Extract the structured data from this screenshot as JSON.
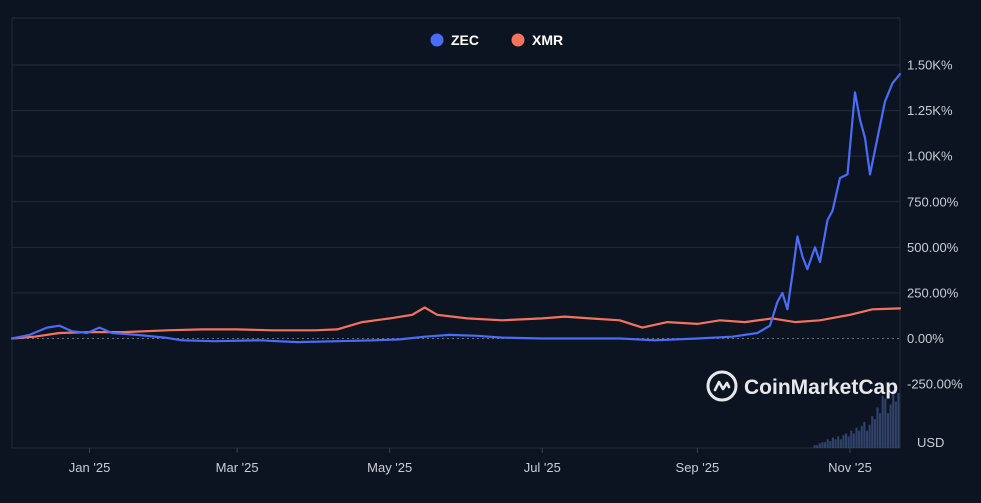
{
  "chart_data": {
    "type": "line",
    "title": "",
    "xlabel": "",
    "ylabel": "",
    "unit_label": "USD",
    "watermark": "CoinMarketCap",
    "legend_position": "top-center",
    "grid": true,
    "x_ticks": [
      "Jan '25",
      "Mar '25",
      "May '25",
      "Jul '25",
      "Sep '25",
      "Nov '25"
    ],
    "y_ticks": [
      "1.50K%",
      "1.25K%",
      "1.00K%",
      "750.00%",
      "500.00%",
      "250.00%",
      "0.00%",
      "-250.00%"
    ],
    "ylim": [
      -600,
      1750
    ],
    "x_range": [
      "2024-12-01",
      "2025-11-21"
    ],
    "series": [
      {
        "name": "ZEC",
        "color": "#4a6cf7",
        "points": [
          [
            "2024-12-01",
            0
          ],
          [
            "2024-12-08",
            20
          ],
          [
            "2024-12-15",
            60
          ],
          [
            "2024-12-20",
            70
          ],
          [
            "2024-12-25",
            40
          ],
          [
            "2024-12-31",
            30
          ],
          [
            "2025-01-05",
            60
          ],
          [
            "2025-01-10",
            30
          ],
          [
            "2025-01-20",
            20
          ],
          [
            "2025-01-31",
            5
          ],
          [
            "2025-02-07",
            -10
          ],
          [
            "2025-02-20",
            -15
          ],
          [
            "2025-03-10",
            -10
          ],
          [
            "2025-03-25",
            -20
          ],
          [
            "2025-04-10",
            -15
          ],
          [
            "2025-04-25",
            -10
          ],
          [
            "2025-05-05",
            -5
          ],
          [
            "2025-05-15",
            10
          ],
          [
            "2025-05-25",
            20
          ],
          [
            "2025-06-05",
            15
          ],
          [
            "2025-06-15",
            5
          ],
          [
            "2025-07-01",
            0
          ],
          [
            "2025-07-15",
            0
          ],
          [
            "2025-08-01",
            0
          ],
          [
            "2025-08-15",
            -10
          ],
          [
            "2025-09-01",
            0
          ],
          [
            "2025-09-15",
            10
          ],
          [
            "2025-09-25",
            30
          ],
          [
            "2025-09-30",
            70
          ],
          [
            "2025-10-03",
            200
          ],
          [
            "2025-10-05",
            250
          ],
          [
            "2025-10-07",
            160
          ],
          [
            "2025-10-09",
            350
          ],
          [
            "2025-10-11",
            560
          ],
          [
            "2025-10-13",
            450
          ],
          [
            "2025-10-15",
            380
          ],
          [
            "2025-10-18",
            500
          ],
          [
            "2025-10-20",
            420
          ],
          [
            "2025-10-23",
            650
          ],
          [
            "2025-10-25",
            700
          ],
          [
            "2025-10-28",
            880
          ],
          [
            "2025-10-31",
            900
          ],
          [
            "2025-11-03",
            1350
          ],
          [
            "2025-11-05",
            1200
          ],
          [
            "2025-11-07",
            1100
          ],
          [
            "2025-11-09",
            900
          ],
          [
            "2025-11-12",
            1100
          ],
          [
            "2025-11-15",
            1300
          ],
          [
            "2025-11-18",
            1400
          ],
          [
            "2025-11-21",
            1450
          ]
        ]
      },
      {
        "name": "XMR",
        "color": "#f4735c",
        "points": [
          [
            "2024-12-01",
            0
          ],
          [
            "2024-12-10",
            10
          ],
          [
            "2024-12-20",
            30
          ],
          [
            "2025-01-01",
            35
          ],
          [
            "2025-01-15",
            35
          ],
          [
            "2025-02-01",
            45
          ],
          [
            "2025-02-15",
            50
          ],
          [
            "2025-03-01",
            50
          ],
          [
            "2025-03-15",
            45
          ],
          [
            "2025-04-01",
            45
          ],
          [
            "2025-04-10",
            50
          ],
          [
            "2025-04-20",
            90
          ],
          [
            "2025-05-01",
            110
          ],
          [
            "2025-05-10",
            130
          ],
          [
            "2025-05-15",
            170
          ],
          [
            "2025-05-20",
            130
          ],
          [
            "2025-06-01",
            110
          ],
          [
            "2025-06-15",
            100
          ],
          [
            "2025-07-01",
            110
          ],
          [
            "2025-07-10",
            120
          ],
          [
            "2025-07-20",
            110
          ],
          [
            "2025-08-01",
            100
          ],
          [
            "2025-08-10",
            60
          ],
          [
            "2025-08-20",
            90
          ],
          [
            "2025-09-01",
            80
          ],
          [
            "2025-09-10",
            100
          ],
          [
            "2025-09-20",
            90
          ],
          [
            "2025-10-01",
            110
          ],
          [
            "2025-10-10",
            90
          ],
          [
            "2025-10-20",
            100
          ],
          [
            "2025-11-01",
            130
          ],
          [
            "2025-11-10",
            160
          ],
          [
            "2025-11-21",
            165
          ]
        ]
      }
    ],
    "volume": [
      0,
      0,
      0,
      0,
      0,
      0,
      0,
      0,
      0,
      0,
      0,
      0,
      0,
      0,
      0,
      0,
      0,
      0,
      0,
      0,
      0,
      0,
      0,
      0,
      0,
      0,
      0,
      0,
      0,
      0,
      0,
      0,
      0,
      0,
      0,
      0,
      0,
      0,
      0,
      0,
      0,
      0,
      0,
      0,
      0,
      0,
      0,
      0,
      0,
      0,
      0,
      0,
      0,
      0,
      0,
      0,
      0,
      0,
      0,
      0,
      0,
      0,
      0,
      0,
      0,
      0,
      0,
      0,
      0,
      0,
      0,
      0,
      0,
      0,
      0,
      0,
      0,
      0,
      0,
      0,
      0,
      0,
      0,
      0,
      0,
      0,
      0,
      0,
      0,
      0,
      0,
      0,
      0,
      0,
      0,
      0,
      0,
      0,
      0,
      0,
      0,
      0,
      0,
      0,
      0,
      0,
      0,
      0,
      0,
      0,
      0,
      0,
      0,
      0,
      0,
      0,
      0,
      0,
      0,
      0,
      0,
      0,
      0,
      0,
      0,
      0,
      0,
      0,
      0,
      0,
      0,
      0,
      0,
      0,
      0,
      0,
      0,
      0,
      0,
      0,
      0,
      0,
      0,
      0,
      0,
      0,
      0,
      0,
      0,
      0,
      0,
      0,
      0,
      0,
      0,
      0,
      0,
      0,
      0,
      0,
      0,
      0,
      0,
      0,
      0,
      0,
      0,
      0,
      0,
      0,
      0,
      0,
      0,
      0,
      0,
      0,
      0,
      0,
      0,
      0,
      0,
      0,
      0,
      0,
      0,
      0,
      0,
      0,
      0,
      0,
      0,
      0,
      0,
      0,
      0,
      0,
      0,
      0,
      0,
      0,
      0,
      0,
      0,
      0,
      0,
      0,
      0,
      0,
      0,
      0,
      0,
      0,
      0,
      0,
      0,
      0,
      0,
      0,
      0,
      0,
      0,
      0,
      0,
      0,
      0,
      0,
      0,
      0,
      0,
      0,
      0,
      0,
      0,
      0,
      0,
      0,
      0,
      0,
      0,
      0,
      0,
      0,
      0,
      0,
      0,
      0,
      0,
      0,
      0,
      0,
      0,
      0,
      0,
      0,
      0,
      0,
      0,
      0,
      0,
      0,
      0,
      0,
      0,
      0,
      0,
      0,
      0,
      0,
      0,
      0,
      0,
      0,
      0,
      0,
      0,
      0,
      0,
      0,
      0,
      0,
      0,
      0,
      0,
      0,
      0,
      0,
      0,
      0,
      0,
      0,
      0,
      0,
      0,
      0,
      0,
      0,
      0,
      0,
      0,
      0,
      0,
      0,
      0,
      0,
      0,
      0,
      0.05,
      0.05,
      0.08,
      0.1,
      0.1,
      0.15,
      0.12,
      0.18,
      0.15,
      0.2,
      0.15,
      0.22,
      0.25,
      0.2,
      0.3,
      0.25,
      0.35,
      0.3,
      0.38,
      0.45,
      0.3,
      0.4,
      0.55,
      0.5,
      0.7,
      0.6,
      0.9,
      0.85,
      0.6,
      0.75,
      1.0,
      0.8,
      0.95
    ]
  }
}
